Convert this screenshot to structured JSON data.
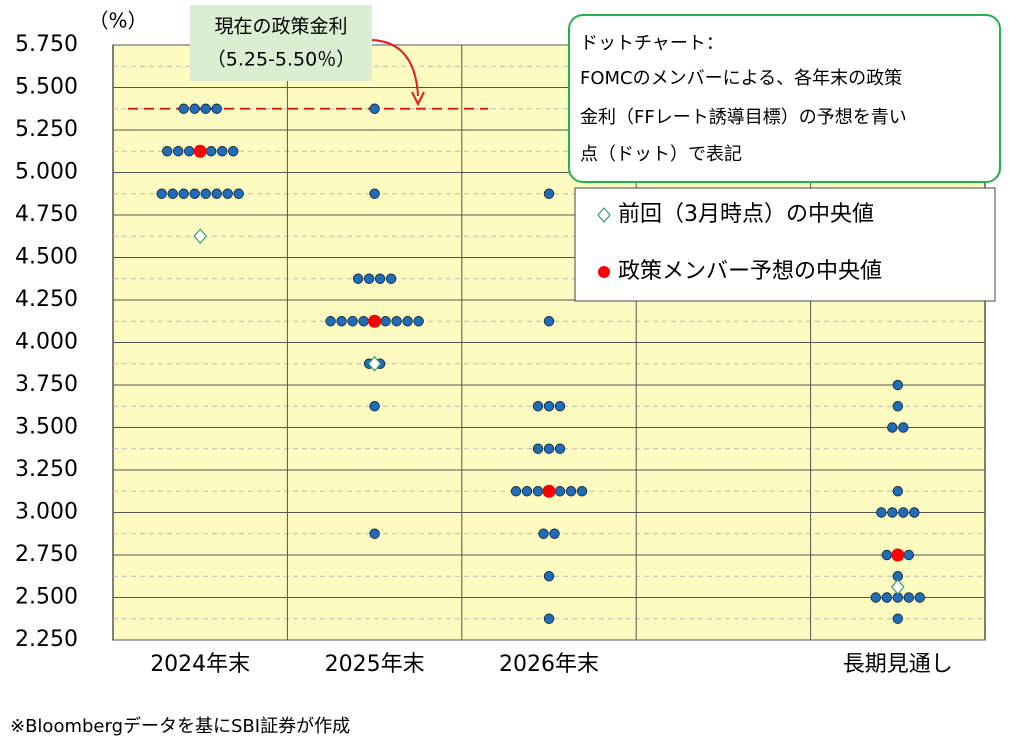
{
  "chart_data": {
    "type": "dot",
    "y_unit": "（%）",
    "categories": [
      "2024年末",
      "2025年末",
      "2026年末",
      null,
      "長期見通し"
    ],
    "ylim": [
      2.25,
      5.75
    ],
    "yticks": [
      {
        "value": 2.25,
        "label": "2.250"
      },
      {
        "value": 2.5,
        "label": "2.500"
      },
      {
        "value": 2.75,
        "label": "2.750"
      },
      {
        "value": 3,
        "label": "3.000"
      },
      {
        "value": 3.25,
        "label": "3.250"
      },
      {
        "value": 3.5,
        "label": "3.500"
      },
      {
        "value": 3.75,
        "label": "3.750"
      },
      {
        "value": 4,
        "label": "4.000"
      },
      {
        "value": 4.25,
        "label": "4.250"
      },
      {
        "value": 4.5,
        "label": "4.500"
      },
      {
        "value": 4.75,
        "label": "4.750"
      },
      {
        "value": 5,
        "label": "5.000"
      },
      {
        "value": 5.25,
        "label": "5.250"
      },
      {
        "value": 5.5,
        "label": "5.500"
      },
      {
        "value": 5.75,
        "label": "5.750"
      }
    ],
    "grid": true,
    "minor_grid": true,
    "dots": {
      "color": "#1f6cb8",
      "values": [
        [
          5.375,
          5.375,
          5.375,
          5.375,
          5.125,
          5.125,
          5.125,
          5.125,
          5.125,
          5.125,
          5.125,
          4.875,
          4.875,
          4.875,
          4.875,
          4.875,
          4.875,
          4.875,
          4.875
        ],
        [
          5.375,
          4.875,
          4.375,
          4.375,
          4.375,
          4.375,
          4.125,
          4.125,
          4.125,
          4.125,
          4.125,
          4.125,
          4.125,
          4.125,
          4.125,
          3.875,
          3.875,
          3.625,
          2.875
        ],
        [
          4.875,
          4.125,
          3.625,
          3.625,
          3.625,
          3.375,
          3.375,
          3.375,
          3.125,
          3.125,
          3.125,
          3.125,
          3.125,
          3.125,
          3.125,
          2.875,
          2.875,
          2.625,
          2.375
        ],
        [],
        [
          3.75,
          3.625,
          3.5,
          3.5,
          3.125,
          3,
          3,
          3,
          3,
          2.75,
          2.75,
          2.75,
          2.625,
          2.5,
          2.5,
          2.5,
          2.5,
          2.5,
          2.375
        ]
      ]
    },
    "series": [
      {
        "name": "前回（3月時点）の中央値",
        "color": "#2e9e6e",
        "marker": "diamond",
        "values": [
          4.625,
          3.875,
          null,
          null,
          2.5625
        ]
      },
      {
        "name": "政策メンバー予想の中央値",
        "color": "#ff0000",
        "marker": "circle",
        "values": [
          5.125,
          4.125,
          3.125,
          null,
          2.75
        ]
      }
    ],
    "policy_rate_line": {
      "value": 5.375,
      "color": "#e02020",
      "label": [
        "現在の政策金利",
        "（5.25-5.50％）"
      ]
    },
    "callout": [
      "ドットチャート：",
      "FOMCのメンバーによる、各年末の政策",
      "金利（FFレート誘導目標）の予想を青い",
      "点（ドット）で表記"
    ],
    "source": "※Bloombergデータを基にSBI証券が作成"
  }
}
